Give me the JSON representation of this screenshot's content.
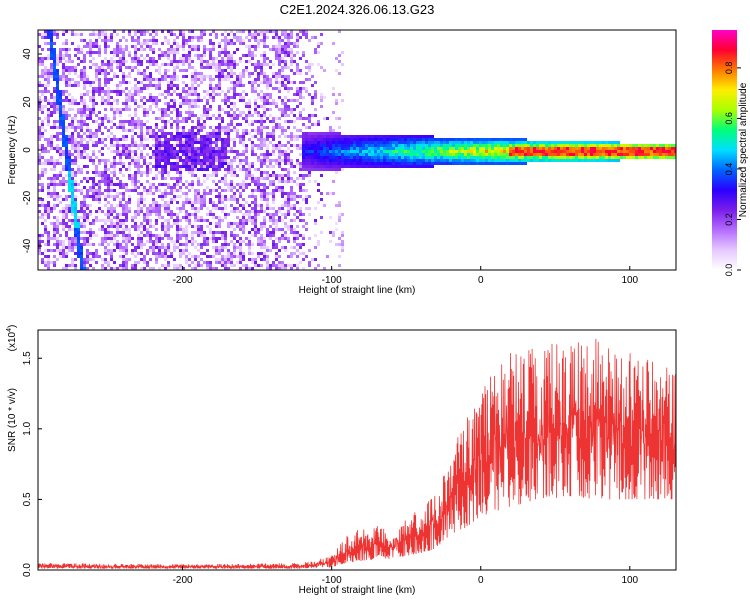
{
  "page_title": "C2E1.2024.326.06.13.G23",
  "chart_data": [
    {
      "type": "heatmap",
      "title": "C2E1.2024.326.06.13.G23",
      "xlabel": "Height of straight line (km)",
      "ylabel": "Frequency (Hz)",
      "xlim": [
        -297,
        131
      ],
      "ylim": [
        -50,
        50
      ],
      "x_ticks": [
        -200,
        -100,
        0,
        100
      ],
      "y_ticks": [
        -40,
        -20,
        0,
        20,
        40
      ],
      "colorbar": {
        "label": "Normalized spectral amplitude",
        "range": [
          0.0,
          0.95
        ],
        "ticks": [
          "0.0",
          "0.2",
          "0.4",
          "0.6",
          "0.8"
        ],
        "colors": [
          "#ffffff",
          "#e6c8ff",
          "#b46cff",
          "#7a1eea",
          "#2a00ff",
          "#0066ff",
          "#00dfff",
          "#00ff7a",
          "#aaff00",
          "#ffee00",
          "#ff7a00",
          "#ff0030",
          "#ff00c8"
        ]
      },
      "features": [
        {
          "name": "noise_region",
          "x_range": [
            -297,
            -100
          ],
          "freq_range": [
            -50,
            50
          ],
          "typical_amplitude": 0.2
        },
        {
          "name": "diagonal_line",
          "x": [
            -290,
            -268
          ],
          "freq": [
            50,
            -50
          ],
          "amplitude": 0.35
        },
        {
          "name": "signal_band",
          "x_range": [
            -120,
            131
          ],
          "center_freq": 0,
          "half_width_hz": [
            8,
            3
          ],
          "peak_amplitude": 0.9
        }
      ]
    },
    {
      "type": "line",
      "xlabel": "Height of straight line (km)",
      "ylabel": "SNR (10 * v/v)",
      "y_multiplier": "(x10",
      "y_multiplier_exp": "4",
      "xlim": [
        -297,
        131
      ],
      "ylim": [
        0,
        1.7
      ],
      "x_ticks": [
        -200,
        -100,
        0,
        100
      ],
      "y_ticks": [
        "0.0",
        "0.5",
        "1.0",
        "1.5"
      ],
      "color": "#ee3333",
      "envelope": {
        "x": [
          -297,
          -200,
          -120,
          -100,
          -90,
          -75,
          -60,
          -40,
          -30,
          -20,
          -10,
          0,
          20,
          40,
          60,
          80,
          100,
          131
        ],
        "base": [
          0.01,
          0.01,
          0.01,
          0.02,
          0.05,
          0.07,
          0.08,
          0.12,
          0.15,
          0.25,
          0.3,
          0.38,
          0.45,
          0.5,
          0.52,
          0.5,
          0.5,
          0.5
        ],
        "peak": [
          0.05,
          0.04,
          0.05,
          0.1,
          0.25,
          0.32,
          0.3,
          0.45,
          0.55,
          0.9,
          1.1,
          1.3,
          1.55,
          1.6,
          1.65,
          1.68,
          1.55,
          1.45
        ]
      }
    }
  ]
}
